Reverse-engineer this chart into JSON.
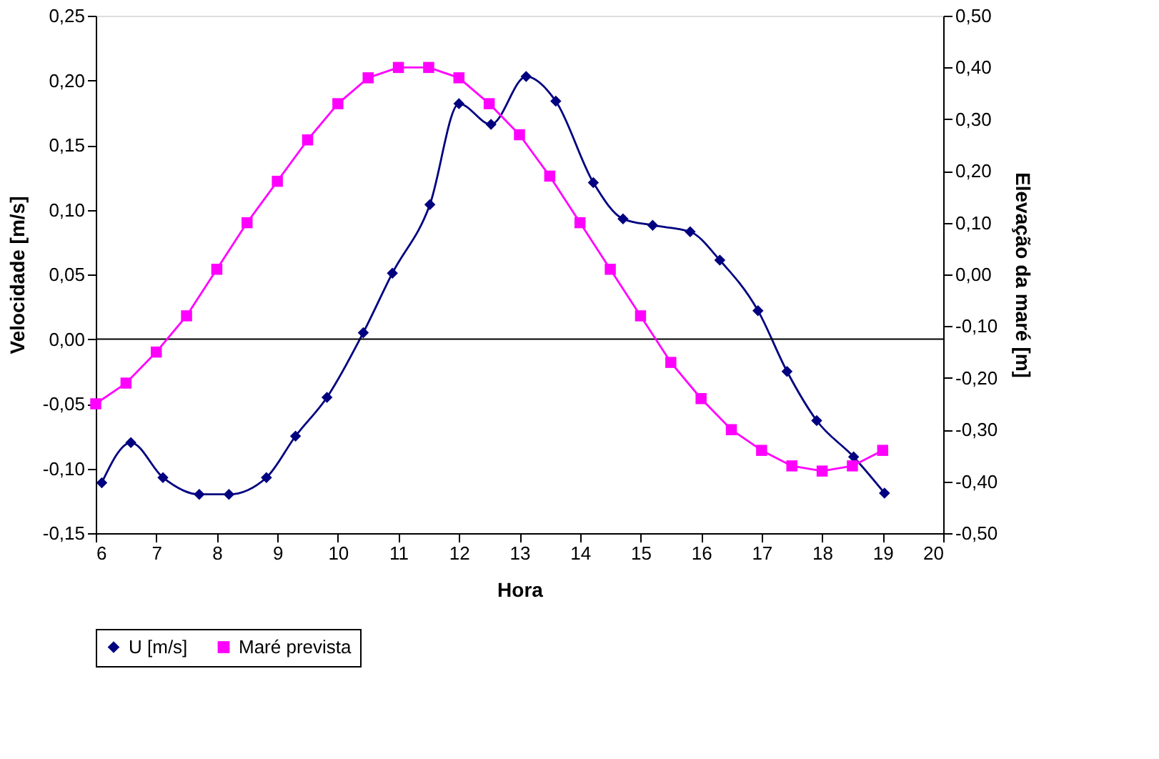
{
  "chart_data": {
    "type": "line",
    "xlabel": "Hora",
    "ylabel": "Velocidade [m/s]",
    "y2label": "Elevação da maré [m]",
    "xlim": [
      6,
      20
    ],
    "xticks": [
      6,
      7,
      8,
      9,
      10,
      11,
      12,
      13,
      14,
      15,
      16,
      17,
      18,
      19,
      20
    ],
    "ylim": [
      -0.15,
      0.25
    ],
    "yticks": [
      {
        "value": -0.15,
        "label": "-0,15"
      },
      {
        "value": -0.1,
        "label": "-0,10"
      },
      {
        "value": -0.05,
        "label": "-0,05"
      },
      {
        "value": 0,
        "label": "0,00"
      },
      {
        "value": 0.05,
        "label": "0,05"
      },
      {
        "value": 0.1,
        "label": "0,10"
      },
      {
        "value": 0.15,
        "label": "0,15"
      },
      {
        "value": 0.2,
        "label": "0,20"
      },
      {
        "value": 0.25,
        "label": "0,25"
      }
    ],
    "y2lim": [
      -0.5,
      0.5
    ],
    "y2ticks": [
      {
        "value": -0.5,
        "label": "-0,50"
      },
      {
        "value": -0.4,
        "label": "-0,40"
      },
      {
        "value": -0.3,
        "label": "-0,30"
      },
      {
        "value": -0.2,
        "label": "-0,20"
      },
      {
        "value": -0.1,
        "label": "-0,10"
      },
      {
        "value": 0,
        "label": "0,00"
      },
      {
        "value": 0.1,
        "label": "0,10"
      },
      {
        "value": 0.2,
        "label": "0,20"
      },
      {
        "value": 0.3,
        "label": "0,30"
      },
      {
        "value": 0.4,
        "label": "0,40"
      },
      {
        "value": 0.5,
        "label": "0,50"
      }
    ],
    "ref_lines": [
      {
        "axis": "y",
        "value": 0,
        "color": "#000000"
      }
    ],
    "grid": false,
    "legend": "bottom",
    "series": [
      {
        "name": "U [m/s]",
        "color": "#000080",
        "marker": "diamond",
        "x": [
          6.1,
          6.58,
          7.11,
          7.71,
          8.2,
          8.82,
          9.3,
          9.82,
          10.42,
          10.9,
          11.52,
          12.0,
          12.53,
          13.11,
          13.6,
          14.22,
          14.71,
          15.2,
          15.82,
          16.31,
          16.94,
          17.42,
          17.91,
          18.52,
          19.03
        ],
        "values": [
          -0.111,
          -0.08,
          -0.107,
          -0.12,
          -0.12,
          -0.107,
          -0.075,
          -0.045,
          0.005,
          0.051,
          0.104,
          0.182,
          0.166,
          0.203,
          0.184,
          0.121,
          0.093,
          0.088,
          0.083,
          0.061,
          0.022,
          -0.025,
          -0.063,
          -0.091,
          -0.119
        ]
      },
      {
        "name": "Maré prevista",
        "color": "#ff00ff",
        "marker": "square",
        "axis": "y2",
        "x": [
          6.0,
          6.5,
          7.0,
          7.5,
          8.0,
          8.5,
          9.0,
          9.5,
          10.0,
          10.5,
          11.0,
          11.5,
          12.0,
          12.5,
          13.0,
          13.5,
          14.0,
          14.5,
          15.0,
          15.5,
          16.0,
          16.5,
          17.0,
          17.5,
          18.0,
          18.5,
          19.0
        ],
        "values": [
          -0.25,
          -0.21,
          -0.15,
          -0.08,
          0.01,
          0.1,
          0.18,
          0.26,
          0.33,
          0.38,
          0.4,
          0.4,
          0.38,
          0.33,
          0.27,
          0.19,
          0.1,
          0.01,
          -0.08,
          -0.17,
          -0.24,
          -0.3,
          -0.34,
          -0.37,
          -0.38,
          -0.37,
          -0.34
        ]
      }
    ]
  }
}
